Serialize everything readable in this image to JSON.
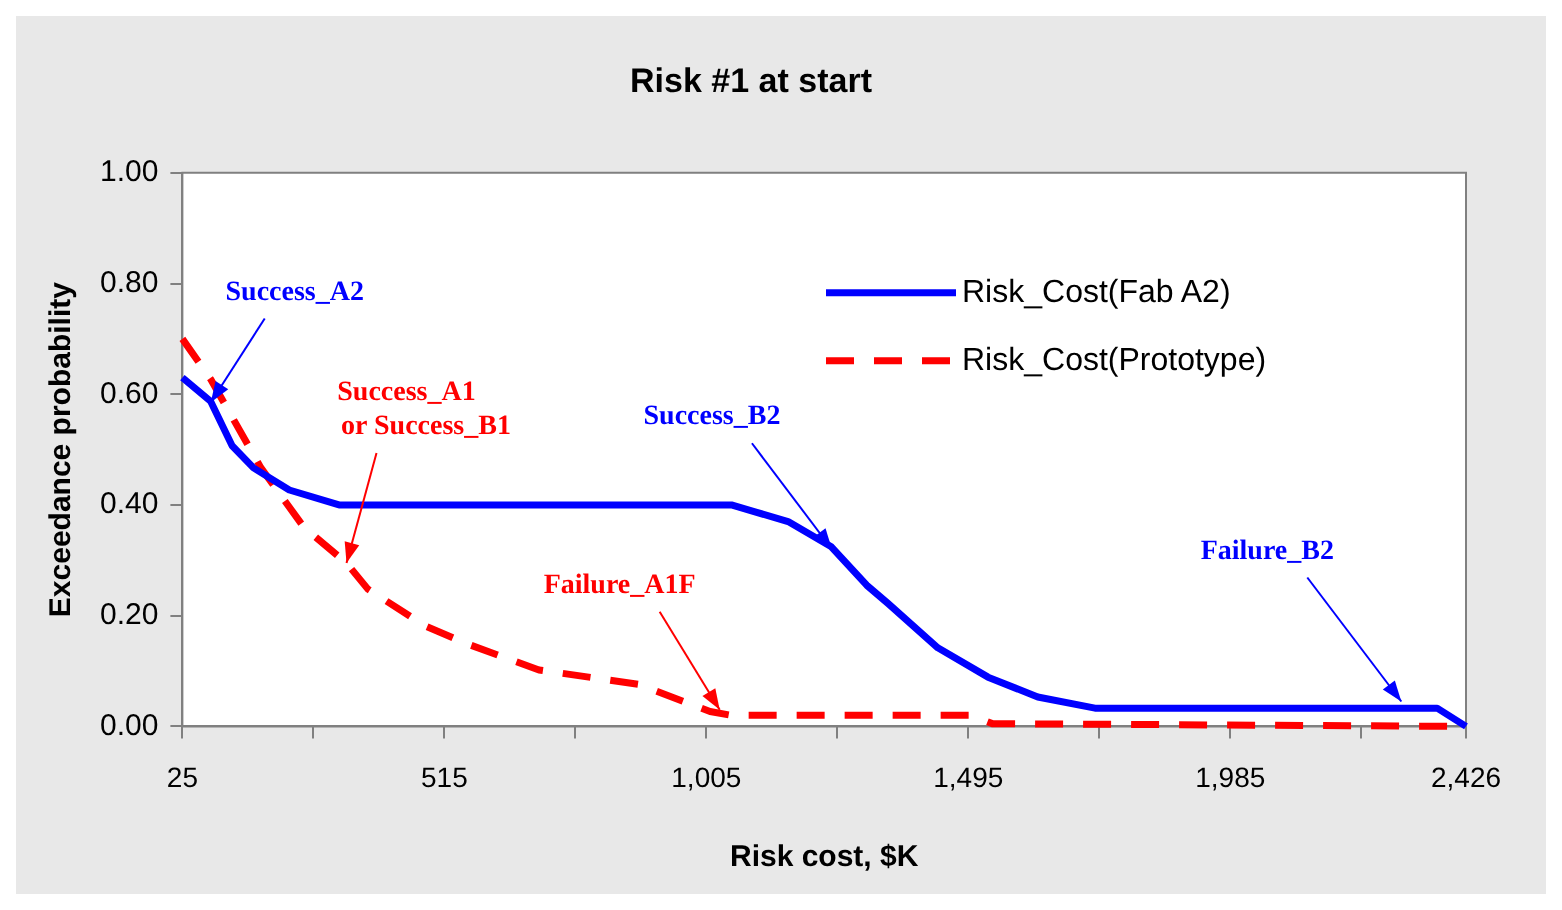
{
  "chart_data": {
    "type": "line",
    "title": "Risk #1 at start",
    "xlabel": "Risk cost, $K",
    "ylabel": "Exceedance probability",
    "xlim": [
      25,
      2426
    ],
    "xticks": [
      25,
      {
        "value": 270,
        "label": null
      },
      515,
      {
        "value": 760,
        "label": null
      },
      {
        "value": 1005,
        "label": "1,005"
      },
      {
        "value": 1250,
        "label": null
      },
      {
        "value": 1495,
        "label": "1,495"
      },
      {
        "value": 1740,
        "label": null
      },
      {
        "value": 1985,
        "label": "1,985"
      },
      {
        "value": 2230,
        "label": null
      },
      {
        "value": 2426,
        "label": "2,426"
      }
    ],
    "ylim": [
      0,
      1
    ],
    "yticks": [
      {
        "value": 0,
        "label": "0.00"
      },
      {
        "value": 0.2,
        "label": "0.20"
      },
      {
        "value": 0.4,
        "label": "0.40"
      },
      {
        "value": 0.6,
        "label": "0.60"
      },
      {
        "value": 0.8,
        "label": "0.80"
      },
      {
        "value": 1,
        "label": "1.00"
      }
    ],
    "grid": false,
    "legend": "top right",
    "marker": "none",
    "series": [
      {
        "name": "Risk_Cost(Fab A2)",
        "color": "#0000ff",
        "line_style": "solid",
        "x": [
          25,
          78,
          118,
          158,
          225,
          318,
          1052,
          1158,
          1238,
          1305,
          1345,
          1438,
          1532,
          1625,
          1732,
          2372,
          2426
        ],
        "values": [
          0.63,
          0.587,
          0.507,
          0.467,
          0.427,
          0.4,
          0.4,
          0.37,
          0.325,
          0.255,
          0.222,
          0.142,
          0.089,
          0.053,
          0.033,
          0.033,
          0
        ]
      },
      {
        "name": "Risk_Cost(Prototype)",
        "color": "#ff0000",
        "line_style": "dashed",
        "x": [
          25,
          78,
          172,
          252,
          332,
          372,
          478,
          558,
          692,
          878,
          1012,
          1052,
          1500,
          1540,
          2426
        ],
        "values": [
          0.7,
          0.627,
          0.467,
          0.36,
          0.295,
          0.248,
          0.182,
          0.149,
          0.102,
          0.076,
          0.027,
          0.02,
          0.02,
          0.005,
          0
        ]
      }
    ],
    "annotations": [
      {
        "text": "Success_A2",
        "x": 78,
        "y": 0.585
      },
      {
        "text": "Success_A1 or Success_B1",
        "x": 332,
        "y": 0.295
      },
      {
        "text": "Success_B2",
        "x": 1240,
        "y": 0.32
      },
      {
        "text": "Failure_A1F",
        "x": 1030,
        "y": 0.03
      },
      {
        "text": "Failure_B2",
        "x": 2305,
        "y": 0.045
      }
    ]
  }
}
